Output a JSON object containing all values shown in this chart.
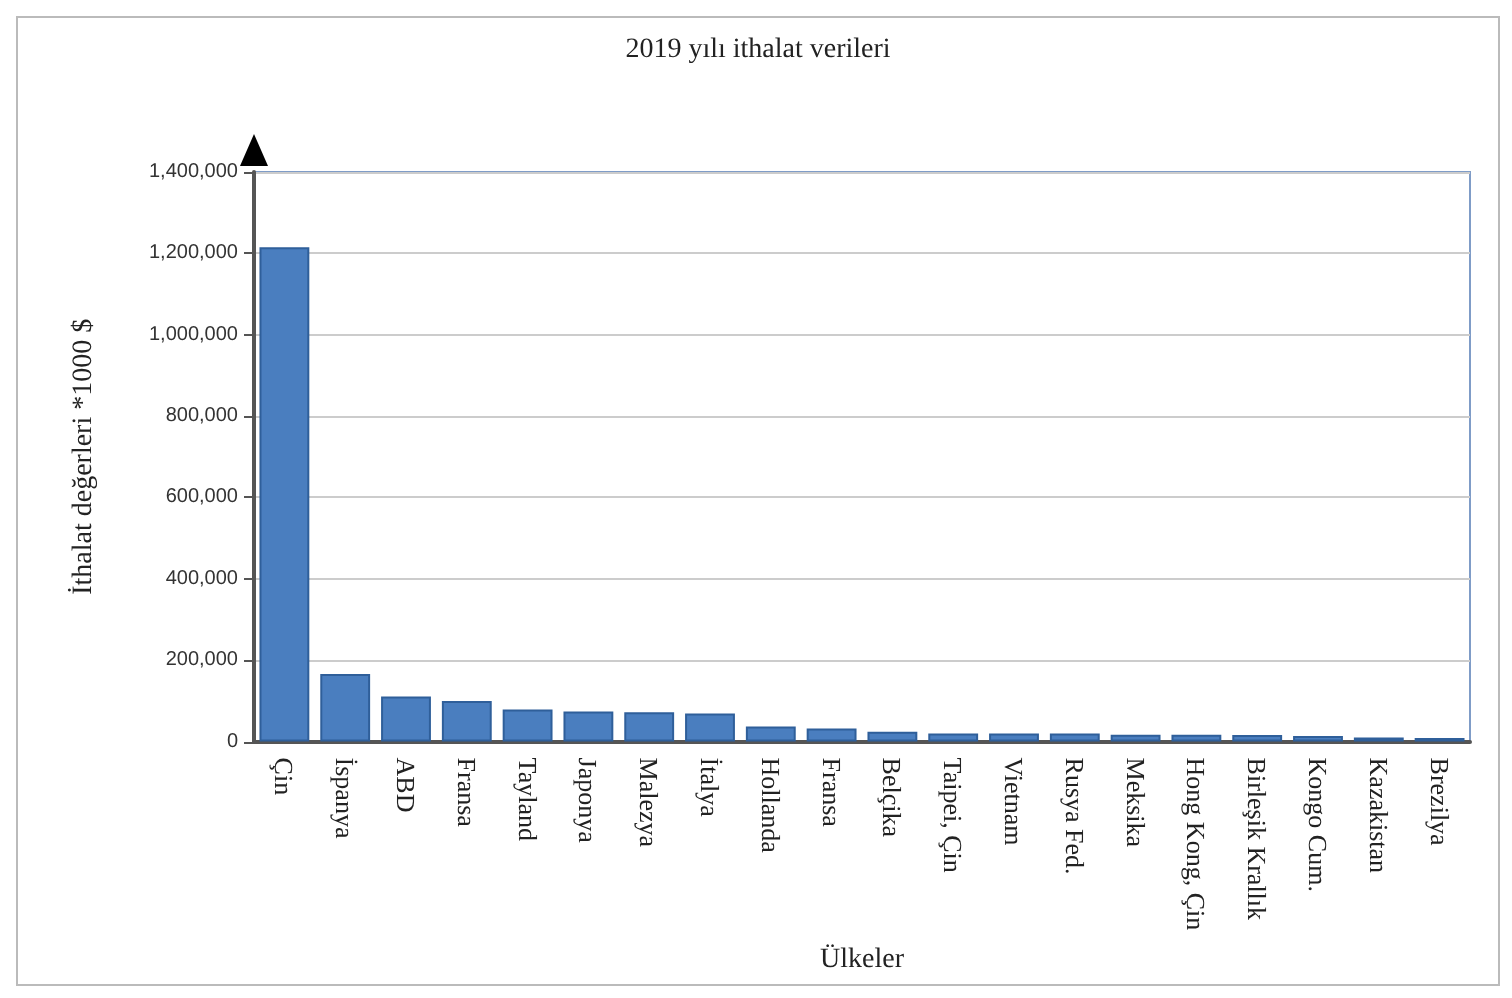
{
  "chart_data": {
    "type": "bar",
    "title": "2019 yılı ithalat verileri",
    "xlabel": "Ülkeler",
    "ylabel": "İthalat değerleri *1000 $",
    "categories": [
      "Çin",
      "İspanya",
      "ABD",
      "Fransa",
      "Tayland",
      "Japonya",
      "Malezya",
      "İtalya",
      "Hollanda",
      "Fransa",
      "Belçika",
      "Taipei, Çin",
      "Vietnam",
      "Rusya Fed.",
      "Meksika",
      "Hong Kong, Çin",
      "Birleşik Krallık",
      "Kongo Cum.",
      "Kazakistan",
      "Brezilya"
    ],
    "values": [
      1215000,
      166000,
      111000,
      100000,
      79000,
      74000,
      72000,
      69000,
      37000,
      32000,
      24000,
      20000,
      20000,
      20000,
      17000,
      17000,
      16000,
      14000,
      10000,
      9000
    ],
    "color": "#4a7ebf",
    "ylim": [
      0,
      1400000
    ],
    "yticks": [
      0,
      {
        "value": 200000,
        "label": "200,000"
      },
      {
        "value": 400000,
        "label": "400,000"
      },
      {
        "value": 600000,
        "label": "600,000"
      },
      {
        "value": 800000,
        "label": "800,000"
      },
      {
        "value": 1000000,
        "label": "1,000,000"
      },
      {
        "value": 1200000,
        "label": "1,200,000"
      },
      {
        "value": 1400000,
        "label": "1,400,000"
      }
    ],
    "grid": "y"
  }
}
